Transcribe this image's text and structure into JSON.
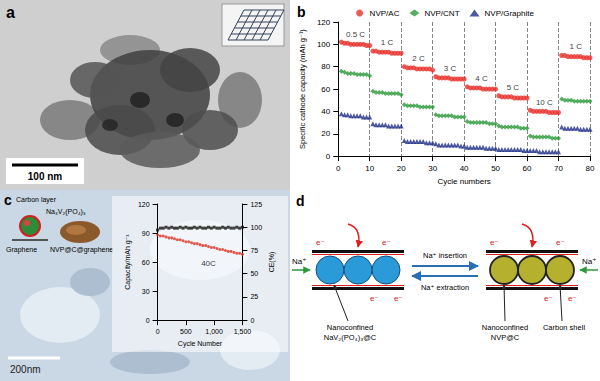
{
  "chart_data": [
    {
      "type": "scatter",
      "x_label": "Cycle numbers",
      "y_label": "Specific cathode capacity (mAh g⁻¹)",
      "x": [
        1,
        2,
        3,
        4,
        5,
        6,
        7,
        8,
        9,
        10,
        11,
        12,
        13,
        14,
        15,
        16,
        17,
        18,
        19,
        20,
        21,
        22,
        23,
        24,
        25,
        26,
        27,
        28,
        29,
        30,
        31,
        32,
        33,
        34,
        35,
        36,
        37,
        38,
        39,
        40,
        41,
        42,
        43,
        44,
        45,
        46,
        47,
        48,
        49,
        50,
        51,
        52,
        53,
        54,
        55,
        56,
        57,
        58,
        59,
        60,
        61,
        62,
        63,
        64,
        65,
        66,
        67,
        68,
        69,
        70,
        71,
        72,
        73,
        74,
        75,
        76,
        77,
        78,
        79,
        80
      ],
      "series": [
        {
          "name": "NVP/AC",
          "color": "#e8302a",
          "marker": "circle",
          "values": [
            102,
            101,
            101,
            100,
            100,
            100,
            100,
            100,
            99,
            99,
            94,
            94,
            93,
            93,
            93,
            93,
            92,
            92,
            92,
            92,
            80,
            79,
            79,
            79,
            78,
            78,
            78,
            78,
            78,
            77,
            71,
            70,
            70,
            70,
            70,
            69,
            69,
            69,
            69,
            69,
            62,
            61,
            61,
            61,
            61,
            60,
            60,
            60,
            60,
            60,
            54,
            53,
            53,
            53,
            53,
            52,
            52,
            52,
            52,
            52,
            41,
            40,
            40,
            40,
            40,
            40,
            39,
            39,
            39,
            39,
            90,
            90,
            89,
            89,
            89,
            89,
            89,
            88,
            88,
            88
          ]
        },
        {
          "name": "NVP/CNT",
          "color": "#2a9a3a",
          "marker": "diamond",
          "values": [
            76,
            75,
            74,
            74,
            74,
            73,
            73,
            73,
            73,
            72,
            58,
            57,
            57,
            57,
            56,
            56,
            56,
            56,
            56,
            55,
            46,
            45,
            45,
            45,
            45,
            44,
            44,
            44,
            44,
            44,
            37,
            36,
            36,
            36,
            36,
            36,
            35,
            35,
            35,
            35,
            31,
            30,
            30,
            30,
            30,
            30,
            30,
            29,
            29,
            29,
            27,
            26,
            26,
            26,
            26,
            26,
            26,
            25,
            25,
            25,
            18,
            17,
            17,
            17,
            17,
            17,
            17,
            16,
            16,
            16,
            51,
            50,
            50,
            50,
            49,
            49,
            49,
            49,
            49,
            49
          ]
        },
        {
          "name": "NVP/Graphite",
          "color": "#1f2f8a",
          "marker": "triangle",
          "values": [
            38,
            37,
            37,
            36,
            36,
            36,
            36,
            35,
            35,
            35,
            29,
            28,
            28,
            28,
            28,
            27,
            27,
            27,
            27,
            27,
            14,
            13,
            13,
            13,
            13,
            13,
            13,
            12,
            12,
            12,
            11,
            10,
            10,
            10,
            10,
            10,
            10,
            10,
            9,
            9,
            8,
            8,
            8,
            8,
            8,
            8,
            7,
            7,
            7,
            7,
            6,
            6,
            6,
            6,
            6,
            6,
            6,
            6,
            5,
            5,
            5,
            5,
            5,
            4,
            4,
            4,
            4,
            4,
            4,
            4,
            26,
            25,
            25,
            25,
            25,
            25,
            24,
            24,
            24,
            24
          ]
        }
      ],
      "annotations": [
        {
          "text": "0.5 C",
          "x": 5.5,
          "y": 109
        },
        {
          "text": "1 C",
          "x": 15.5,
          "y": 102
        },
        {
          "text": "2 C",
          "x": 25.5,
          "y": 87
        },
        {
          "text": "3 C",
          "x": 35.5,
          "y": 78
        },
        {
          "text": "4 C",
          "x": 45.5,
          "y": 69
        },
        {
          "text": "5 C",
          "x": 55.5,
          "y": 61
        },
        {
          "text": "10 C",
          "x": 65.5,
          "y": 48
        },
        {
          "text": "1 C",
          "x": 75.5,
          "y": 98
        }
      ],
      "xlim": [
        0,
        80
      ],
      "xticks": [
        0,
        10,
        20,
        30,
        40,
        50,
        60,
        70,
        80
      ],
      "ylim": [
        0,
        120
      ],
      "yticks": [
        0,
        20,
        40,
        60,
        80,
        100,
        120
      ],
      "grid": "x",
      "legend": "top"
    },
    {
      "type": "scatter",
      "x_label": "Cycle Number",
      "y_label": "Capacity/mAh g⁻¹",
      "y2_label": "CE(%)",
      "x": [
        0,
        50,
        100,
        150,
        200,
        250,
        300,
        350,
        400,
        450,
        500,
        550,
        600,
        650,
        700,
        750,
        800,
        850,
        900,
        950,
        1000,
        1050,
        1100,
        1150,
        1200,
        1250,
        1300,
        1350,
        1400,
        1450,
        1500
      ],
      "series": [
        {
          "color": "#e03020",
          "marker": "circle",
          "values": [
            88,
            87,
            87,
            86,
            85,
            85,
            84,
            83,
            83,
            82,
            81,
            81,
            80,
            79,
            79,
            78,
            77,
            77,
            76,
            75,
            75,
            74,
            73,
            73,
            72,
            71,
            71,
            70,
            69,
            69,
            68
          ]
        },
        {
          "color": "#111111",
          "marker": "square",
          "axis": "y2",
          "values": [
            97,
            99,
            99,
            100,
            99,
            100,
            99,
            99,
            100,
            99,
            100,
            99,
            99,
            100,
            99,
            100,
            99,
            99,
            100,
            99,
            100,
            99,
            99,
            100,
            99,
            100,
            99,
            99,
            100,
            99,
            100
          ]
        }
      ],
      "annotations": [
        {
          "text": "40C",
          "x": 900,
          "y": 58
        }
      ],
      "xlim": [
        0,
        1500
      ],
      "xticks": [
        0,
        500,
        1000,
        1500
      ],
      "ylim": [
        0,
        120
      ],
      "yticks": [
        0,
        30,
        60,
        90,
        120
      ],
      "y2lim": [
        0,
        125
      ],
      "y2ticks": [
        0,
        25,
        50,
        75,
        100,
        125
      ],
      "grid": false
    }
  ],
  "panels": {
    "a": {
      "letter": "a",
      "scale_bar": "100 nm"
    },
    "b": {
      "letter": "b"
    },
    "c": {
      "letter": "c",
      "scale_bar": "200nm",
      "schematic": {
        "carbon_layer": "Carbon layer",
        "core": "Na₃V₂(PO₄)₃",
        "graphene": "Graphene",
        "composite": "NVP@C@graphene"
      }
    },
    "d": {
      "letter": "d",
      "electron": "e⁻",
      "sodium": "Na⁺",
      "insertion": "Na⁺ insertion",
      "extraction": "Na⁺ extraction",
      "left_particle": "Nanoconfined NaV₂(PO₄)₃@C",
      "right_particle": "Nanoconfined NVP@C",
      "shell": "Carbon shell"
    }
  }
}
